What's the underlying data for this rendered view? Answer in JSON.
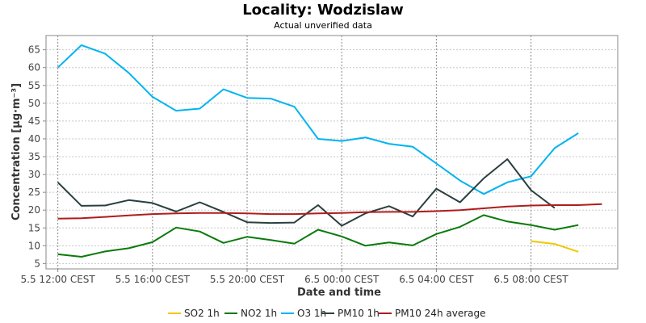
{
  "chart_data": {
    "type": "line",
    "title": "Locality: Wodzislaw",
    "subtitle": "Actual unverified data",
    "xlabel": "Date and time",
    "ylabel": "Concentration [µg·m⁻³]",
    "xlim": [
      "2018-05-05 11:30",
      "2018-05-06 11:40"
    ],
    "ylim": [
      3.5,
      69
    ],
    "grid": true,
    "legend_position": "bottom",
    "x_ticks": [
      {
        "label": "5.5 12:00 CEST",
        "time": "2018-05-05 12:00"
      },
      {
        "label": "5.5 16:00 CEST",
        "time": "2018-05-05 16:00"
      },
      {
        "label": "5.5 20:00 CEST",
        "time": "2018-05-05 20:00"
      },
      {
        "label": "6.5 00:00 CEST",
        "time": "2018-05-06 00:00"
      },
      {
        "label": "6.5 04:00 CEST",
        "time": "2018-05-06 04:00"
      },
      {
        "label": "6.5 08:00 CEST",
        "time": "2018-05-06 08:00"
      }
    ],
    "y_ticks": [
      5,
      10,
      15,
      20,
      25,
      30,
      35,
      40,
      45,
      50,
      55,
      60,
      65
    ],
    "series": [
      {
        "name": "SO2 1h",
        "color": "#f0c800",
        "x": [
          "2018-05-06 08:00",
          "2018-05-06 09:00",
          "2018-05-06 10:00"
        ],
        "values": [
          11.3,
          10.5,
          8.3
        ]
      },
      {
        "name": "NO2 1h",
        "color": "#0a7a0a",
        "x": [
          "2018-05-05 12:00",
          "2018-05-05 13:00",
          "2018-05-05 14:00",
          "2018-05-05 15:00",
          "2018-05-05 16:00",
          "2018-05-05 17:00",
          "2018-05-05 18:00",
          "2018-05-05 19:00",
          "2018-05-05 20:00",
          "2018-05-05 21:00",
          "2018-05-05 22:00",
          "2018-05-05 23:00",
          "2018-05-06 00:00",
          "2018-05-06 01:00",
          "2018-05-06 02:00",
          "2018-05-06 03:00",
          "2018-05-06 04:00",
          "2018-05-06 05:00",
          "2018-05-06 06:00",
          "2018-05-06 07:00",
          "2018-05-06 08:00",
          "2018-05-06 09:00",
          "2018-05-06 10:00"
        ],
        "values": [
          7.6,
          6.9,
          8.4,
          9.3,
          11.0,
          15.1,
          14.0,
          10.8,
          12.5,
          11.6,
          10.6,
          14.5,
          12.6,
          10.0,
          10.9,
          10.1,
          13.3,
          15.3,
          18.6,
          16.8,
          15.8,
          14.5,
          15.8
        ]
      },
      {
        "name": "O3 1h",
        "color": "#00b4f0",
        "x": [
          "2018-05-05 12:00",
          "2018-05-05 13:00",
          "2018-05-05 14:00",
          "2018-05-05 15:00",
          "2018-05-05 16:00",
          "2018-05-05 17:00",
          "2018-05-05 18:00",
          "2018-05-05 19:00",
          "2018-05-05 20:00",
          "2018-05-05 21:00",
          "2018-05-05 22:00",
          "2018-05-05 23:00",
          "2018-05-06 00:00",
          "2018-05-06 01:00",
          "2018-05-06 02:00",
          "2018-05-06 03:00",
          "2018-05-06 04:00",
          "2018-05-06 05:00",
          "2018-05-06 06:00",
          "2018-05-06 07:00",
          "2018-05-06 08:00",
          "2018-05-06 09:00",
          "2018-05-06 10:00"
        ],
        "values": [
          60.0,
          66.3,
          63.9,
          58.5,
          51.8,
          47.9,
          48.5,
          53.9,
          51.5,
          51.3,
          49.0,
          40.0,
          39.4,
          40.4,
          38.6,
          37.8,
          33.1,
          28.3,
          24.5,
          27.8,
          29.5,
          37.4,
          41.6
        ]
      },
      {
        "name": "PM10 1h",
        "color": "#2a3f3f",
        "x": [
          "2018-05-05 12:00",
          "2018-05-05 13:00",
          "2018-05-05 14:00",
          "2018-05-05 15:00",
          "2018-05-05 16:00",
          "2018-05-05 17:00",
          "2018-05-05 18:00",
          "2018-05-05 19:00",
          "2018-05-05 20:00",
          "2018-05-05 21:00",
          "2018-05-05 22:00",
          "2018-05-05 23:00",
          "2018-05-06 00:00",
          "2018-05-06 01:00",
          "2018-05-06 02:00",
          "2018-05-06 03:00",
          "2018-05-06 04:00",
          "2018-05-06 05:00",
          "2018-05-06 06:00",
          "2018-05-06 07:00",
          "2018-05-06 08:00",
          "2018-05-06 09:00"
        ],
        "values": [
          27.8,
          21.2,
          21.3,
          22.8,
          22.0,
          19.6,
          22.2,
          19.5,
          16.6,
          16.4,
          16.5,
          21.4,
          15.6,
          19.1,
          21.1,
          18.2,
          26.0,
          22.2,
          28.9,
          34.3,
          25.6,
          20.6
        ]
      },
      {
        "name": "PM10 24h average",
        "color": "#b01c1c",
        "x": [
          "2018-05-05 12:00",
          "2018-05-05 13:00",
          "2018-05-05 14:00",
          "2018-05-05 15:00",
          "2018-05-05 16:00",
          "2018-05-05 17:00",
          "2018-05-05 18:00",
          "2018-05-05 19:00",
          "2018-05-05 20:00",
          "2018-05-05 21:00",
          "2018-05-05 22:00",
          "2018-05-05 23:00",
          "2018-05-06 00:00",
          "2018-05-06 01:00",
          "2018-05-06 02:00",
          "2018-05-06 03:00",
          "2018-05-06 04:00",
          "2018-05-06 05:00",
          "2018-05-06 06:00",
          "2018-05-06 07:00",
          "2018-05-06 08:00",
          "2018-05-06 09:00",
          "2018-05-06 10:00",
          "2018-05-06 11:00"
        ],
        "values": [
          17.6,
          17.7,
          18.1,
          18.5,
          18.9,
          19.1,
          19.2,
          19.2,
          19.1,
          18.9,
          18.9,
          19.1,
          19.2,
          19.4,
          19.5,
          19.5,
          19.7,
          20.0,
          20.5,
          21.0,
          21.3,
          21.4,
          21.4,
          21.7
        ]
      }
    ]
  }
}
